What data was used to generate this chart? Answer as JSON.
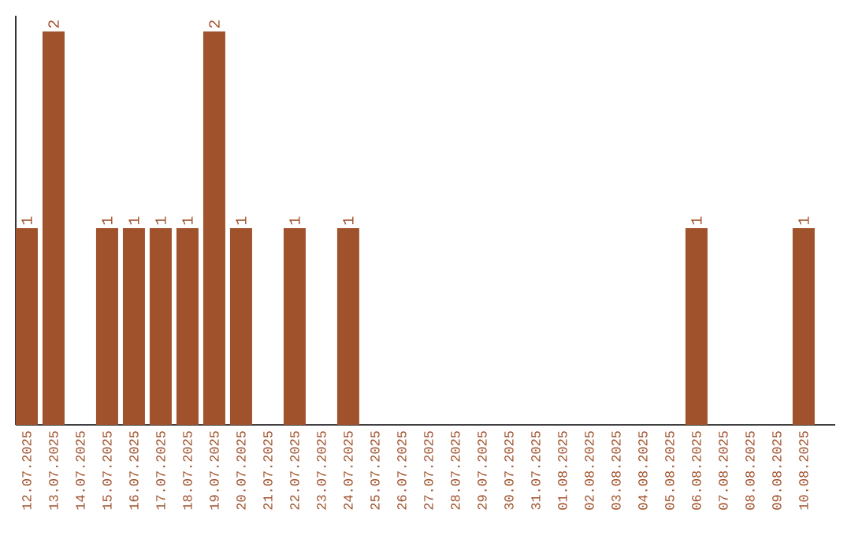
{
  "chart_data": {
    "type": "bar",
    "categories": [
      "12.07.2025",
      "13.07.2025",
      "14.07.2025",
      "15.07.2025",
      "16.07.2025",
      "17.07.2025",
      "18.07.2025",
      "19.07.2025",
      "20.07.2025",
      "21.07.2025",
      "22.07.2025",
      "23.07.2025",
      "24.07.2025",
      "25.07.2025",
      "26.07.2025",
      "27.07.2025",
      "28.07.2025",
      "29.07.2025",
      "30.07.2025",
      "31.07.2025",
      "01.08.2025",
      "02.08.2025",
      "03.08.2025",
      "04.08.2025",
      "05.08.2025",
      "06.08.2025",
      "07.08.2025",
      "08.08.2025",
      "09.08.2025",
      "10.08.2025"
    ],
    "values": [
      1,
      2,
      0,
      1,
      1,
      1,
      1,
      2,
      1,
      0,
      1,
      0,
      1,
      0,
      0,
      0,
      0,
      0,
      0,
      0,
      0,
      0,
      0,
      0,
      0,
      1,
      0,
      0,
      0,
      1
    ],
    "value_labels": [
      "1",
      "2",
      null,
      "1",
      "1",
      "1",
      "1",
      "2",
      "1",
      null,
      "1",
      null,
      "1",
      null,
      null,
      null,
      null,
      null,
      null,
      null,
      null,
      null,
      null,
      null,
      null,
      "1",
      null,
      null,
      null,
      "1"
    ],
    "color": "#a0522d",
    "ylim": [
      0,
      2.08
    ]
  }
}
